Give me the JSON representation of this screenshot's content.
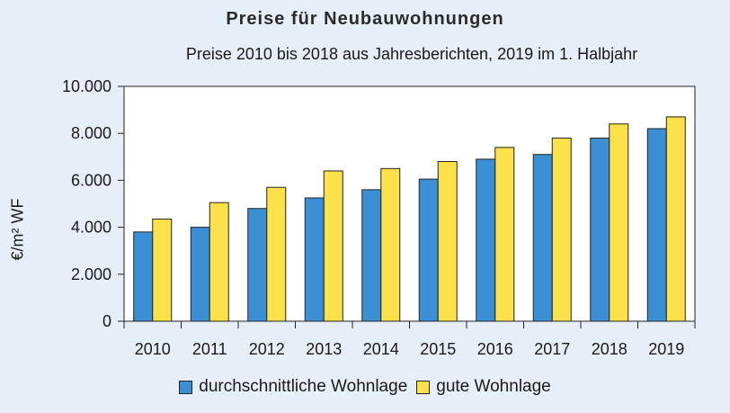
{
  "chart_data": {
    "type": "bar",
    "title": "Preise für Neubauwohnungen",
    "subtitle": "Preise 2010 bis 2018 aus Jahresberichten, 2019 im 1. Halbjahr",
    "xlabel": "",
    "ylabel": "€/m² WF",
    "categories": [
      "2010",
      "2011",
      "2012",
      "2013",
      "2014",
      "2015",
      "2016",
      "2017",
      "2018",
      "2019"
    ],
    "series": [
      {
        "name": "durchschnittliche Wohnlage",
        "color": "#3b8fd4",
        "values": [
          3800,
          4000,
          4800,
          5250,
          5600,
          6050,
          6900,
          7100,
          7800,
          8200
        ]
      },
      {
        "name": "gute Wohnlage",
        "color": "#fde14a",
        "values": [
          4350,
          5050,
          5700,
          6400,
          6500,
          6800,
          7400,
          7800,
          8400,
          8700
        ]
      }
    ],
    "ylim": [
      0,
      10000
    ],
    "yticks": [
      0,
      2000,
      4000,
      6000,
      8000,
      10000
    ],
    "ytick_labels": [
      "0",
      "2.000",
      "4.000",
      "6.000",
      "8.000",
      "10.000"
    ],
    "grid": false,
    "legend_position": "bottom"
  },
  "colors": {
    "background": "#e6eef7",
    "plot_background": "#ffffff",
    "axis": "#222222"
  }
}
